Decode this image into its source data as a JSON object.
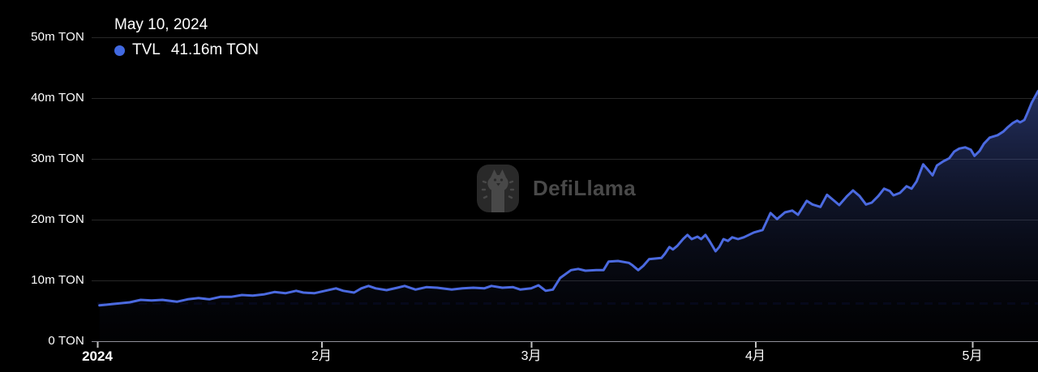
{
  "tooltip": {
    "date": "May 10, 2024",
    "series_label": "TVL",
    "series_value": "41.16m TON"
  },
  "watermark": {
    "brand": "DefiLlama"
  },
  "chart_data": {
    "type": "area",
    "unit": "TON",
    "legend_position": "top-left",
    "grid": "horizontal",
    "x_axis": {
      "tick_labels": [
        "2024",
        "2月",
        "3月",
        "4月",
        "5月"
      ],
      "tick_days": [
        0,
        31,
        60,
        91,
        121
      ],
      "range_days": [
        0,
        130.2
      ]
    },
    "y_axis": {
      "tick_values": [
        0,
        10,
        20,
        30,
        40,
        50
      ],
      "tick_labels": [
        "0 TON",
        "10m TON",
        "20m TON",
        "30m TON",
        "40m TON",
        "50m TON"
      ],
      "ylim": [
        0,
        50
      ]
    },
    "baseline_value": 6.2,
    "colors": {
      "line": "#4b6ae0",
      "dot": "#4169e1",
      "fill_top": "rgba(86,114,226,0.42)",
      "fill_bottom": "rgba(18,24,52,0.06)",
      "grid": "#272727",
      "axis": "#90909a",
      "tick": "#c2c2c2",
      "baseline": "#06081a",
      "background": "#000000",
      "text": "#ffffff",
      "watermark": "#4d4d4d"
    },
    "series": [
      {
        "name": "TVL",
        "unit": "m TON",
        "points": [
          [
            0.3,
            5.9
          ],
          [
            2,
            6.1
          ],
          [
            4.5,
            6.4
          ],
          [
            6,
            6.8
          ],
          [
            7.5,
            6.7
          ],
          [
            9,
            6.8
          ],
          [
            11,
            6.5
          ],
          [
            12.5,
            6.9
          ],
          [
            14,
            7.1
          ],
          [
            15.5,
            6.9
          ],
          [
            17,
            7.3
          ],
          [
            18.5,
            7.3
          ],
          [
            20,
            7.6
          ],
          [
            21.5,
            7.5
          ],
          [
            23,
            7.7
          ],
          [
            24.5,
            8.1
          ],
          [
            26,
            7.9
          ],
          [
            27.5,
            8.3
          ],
          [
            28.5,
            8.0
          ],
          [
            30,
            7.9
          ],
          [
            31.5,
            8.3
          ],
          [
            33,
            8.7
          ],
          [
            34,
            8.3
          ],
          [
            35.5,
            8.0
          ],
          [
            36.5,
            8.7
          ],
          [
            37.5,
            9.1
          ],
          [
            38.5,
            8.7
          ],
          [
            40,
            8.4
          ],
          [
            41.5,
            8.8
          ],
          [
            42.5,
            9.1
          ],
          [
            44,
            8.5
          ],
          [
            45.5,
            8.9
          ],
          [
            47,
            8.8
          ],
          [
            49,
            8.5
          ],
          [
            50.5,
            8.7
          ],
          [
            52,
            8.8
          ],
          [
            53.5,
            8.7
          ],
          [
            54.5,
            9.1
          ],
          [
            56,
            8.8
          ],
          [
            57.5,
            8.9
          ],
          [
            58.5,
            8.5
          ],
          [
            60,
            8.7
          ],
          [
            61,
            9.2
          ],
          [
            62,
            8.3
          ],
          [
            63,
            8.5
          ],
          [
            64,
            10.4
          ],
          [
            65.5,
            11.7
          ],
          [
            66.5,
            11.9
          ],
          [
            67.5,
            11.6
          ],
          [
            69,
            11.7
          ],
          [
            70,
            11.7
          ],
          [
            70.7,
            13.1
          ],
          [
            72,
            13.2
          ],
          [
            73.5,
            12.9
          ],
          [
            74,
            12.5
          ],
          [
            74.8,
            11.7
          ],
          [
            75.5,
            12.4
          ],
          [
            76.3,
            13.5
          ],
          [
            78,
            13.7
          ],
          [
            78.5,
            14.4
          ],
          [
            79.1,
            15.5
          ],
          [
            79.6,
            15.1
          ],
          [
            80.2,
            15.7
          ],
          [
            81,
            16.8
          ],
          [
            81.6,
            17.5
          ],
          [
            82.2,
            16.8
          ],
          [
            83,
            17.2
          ],
          [
            83.5,
            16.8
          ],
          [
            84.1,
            17.5
          ],
          [
            84.7,
            16.4
          ],
          [
            85.5,
            14.8
          ],
          [
            86,
            15.5
          ],
          [
            86.6,
            16.8
          ],
          [
            87.2,
            16.5
          ],
          [
            87.8,
            17.1
          ],
          [
            88.6,
            16.8
          ],
          [
            89.4,
            17.1
          ],
          [
            90.1,
            17.5
          ],
          [
            90.8,
            17.9
          ],
          [
            92,
            18.3
          ],
          [
            93.1,
            21.1
          ],
          [
            94,
            20.1
          ],
          [
            95.1,
            21.2
          ],
          [
            96.1,
            21.5
          ],
          [
            96.9,
            20.8
          ],
          [
            98.1,
            23.1
          ],
          [
            98.9,
            22.5
          ],
          [
            100,
            22.1
          ],
          [
            100.9,
            24.1
          ],
          [
            101.8,
            23.2
          ],
          [
            102.6,
            22.4
          ],
          [
            103.7,
            23.9
          ],
          [
            104.5,
            24.8
          ],
          [
            105.4,
            23.9
          ],
          [
            106.3,
            22.5
          ],
          [
            107.1,
            22.8
          ],
          [
            108,
            23.9
          ],
          [
            108.8,
            25.1
          ],
          [
            109.6,
            24.7
          ],
          [
            110.1,
            24.0
          ],
          [
            111,
            24.4
          ],
          [
            111.9,
            25.5
          ],
          [
            112.6,
            25.1
          ],
          [
            113.3,
            26.3
          ],
          [
            114.2,
            29.1
          ],
          [
            114.8,
            28.3
          ],
          [
            115.5,
            27.3
          ],
          [
            116.1,
            28.9
          ],
          [
            117,
            29.6
          ],
          [
            117.8,
            30.1
          ],
          [
            118.5,
            31.2
          ],
          [
            119.2,
            31.7
          ],
          [
            120,
            31.9
          ],
          [
            120.8,
            31.5
          ],
          [
            121.3,
            30.5
          ],
          [
            122,
            31.3
          ],
          [
            122.6,
            32.5
          ],
          [
            123.4,
            33.5
          ],
          [
            124.5,
            33.9
          ],
          [
            125.3,
            34.5
          ],
          [
            125.9,
            35.2
          ],
          [
            126.6,
            35.9
          ],
          [
            127.2,
            36.3
          ],
          [
            127.6,
            36.0
          ],
          [
            128.2,
            36.4
          ],
          [
            128.6,
            37.5
          ],
          [
            129.2,
            39.2
          ],
          [
            130.1,
            41.16
          ]
        ]
      }
    ]
  }
}
